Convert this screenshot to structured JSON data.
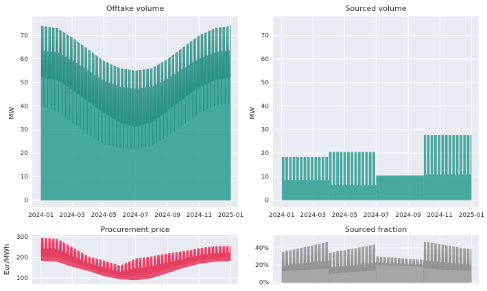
{
  "chart_data": [
    {
      "type": "area",
      "title": "Offtake volume",
      "ylabel": "MW",
      "xlabel": "",
      "color": "#2a9d8f",
      "ylim": [
        -3,
        78
      ],
      "yticks": [
        0,
        10,
        20,
        30,
        40,
        50,
        60,
        70
      ],
      "xticks": [
        "2024-01",
        "2024-03",
        "2024-05",
        "2024-07",
        "2024-09",
        "2024-11",
        "2025-01"
      ],
      "xlim": [
        "2023-12-15",
        "2025-01-15"
      ],
      "grid": true,
      "series": [
        {
          "x": [
            "2024-01-01",
            "2024-02-01",
            "2024-03-01",
            "2024-04-01",
            "2024-05-01",
            "2024-06-01",
            "2024-07-01",
            "2024-08-01",
            "2024-09-01",
            "2024-10-01",
            "2024-11-01",
            "2024-12-01",
            "2024-12-31"
          ],
          "daily_max": [
            74,
            73,
            69,
            64,
            59,
            56,
            55,
            56,
            60,
            65,
            70,
            73,
            74
          ],
          "daily_low": [
            52,
            51,
            47,
            42,
            37,
            33,
            31,
            33,
            38,
            43,
            48,
            51,
            52
          ],
          "weekend_low": [
            40,
            38,
            33,
            28,
            24,
            22,
            22,
            23,
            27,
            32,
            37,
            40,
            41
          ]
        }
      ]
    },
    {
      "type": "area",
      "title": "Sourced volume",
      "ylabel": "MW",
      "xlabel": "",
      "color": "#2a9d8f",
      "ylim": [
        -3,
        78
      ],
      "yticks": [
        0,
        10,
        20,
        30,
        40,
        50,
        60,
        70
      ],
      "xticks": [
        "2024-01",
        "2024-03",
        "2024-05",
        "2024-07",
        "2024-09",
        "2024-11",
        "2025-01"
      ],
      "xlim": [
        "2023-12-15",
        "2025-01-15"
      ],
      "grid": true,
      "series": [
        {
          "quarters": [
            {
              "start": "2024-01-01",
              "end": "2024-04-01",
              "peak": 18.3,
              "base": 8.6
            },
            {
              "start": "2024-04-01",
              "end": "2024-07-01",
              "peak": 20.5,
              "base": 6.4
            },
            {
              "start": "2024-07-01",
              "end": "2024-10-01",
              "peak": 10.5,
              "base": 10.5
            },
            {
              "start": "2024-10-01",
              "end": "2025-01-01",
              "peak": 27.6,
              "base": 10.9
            }
          ]
        }
      ]
    },
    {
      "type": "area",
      "title": "Procurement price",
      "ylabel": "Eur/MWh",
      "xlabel": "",
      "color": "#e63e62",
      "ylim": [
        70,
        310
      ],
      "yticks": [
        100,
        200,
        300
      ],
      "xlim": [
        "2023-12-15",
        "2025-01-15"
      ],
      "grid": true,
      "series": [
        {
          "x": [
            "2024-01-01",
            "2024-02-01",
            "2024-03-01",
            "2024-04-01",
            "2024-05-01",
            "2024-06-01",
            "2024-07-01",
            "2024-08-01",
            "2024-09-01",
            "2024-10-01",
            "2024-11-01",
            "2024-12-01",
            "2024-12-31"
          ],
          "low": [
            185,
            180,
            155,
            135,
            110,
            95,
            90,
            100,
            125,
            150,
            170,
            180,
            185
          ],
          "high": [
            295,
            290,
            250,
            205,
            185,
            160,
            195,
            205,
            220,
            230,
            245,
            255,
            255
          ]
        }
      ]
    },
    {
      "type": "area",
      "title": "Sourced fraction",
      "ylabel": "",
      "xlabel": "",
      "color": "#9a9a9a",
      "ylim": [
        -0.02,
        0.55
      ],
      "yticks": [
        0,
        0.2,
        0.4
      ],
      "ytick_labels": [
        "0%",
        "20%",
        "40%"
      ],
      "xlim": [
        "2023-12-15",
        "2025-01-15"
      ],
      "grid": true,
      "series": [
        {
          "quarters": [
            {
              "start": "2024-01-01",
              "end": "2024-04-01",
              "base_start": 0.13,
              "base_end": 0.16,
              "peak_start": 0.35,
              "peak_end": 0.47
            },
            {
              "start": "2024-04-01",
              "end": "2024-07-01",
              "base_start": 0.1,
              "base_end": 0.14,
              "peak_start": 0.34,
              "peak_end": 0.44
            },
            {
              "start": "2024-07-01",
              "end": "2024-10-01",
              "base_start": 0.2,
              "base_end": 0.18,
              "peak_start": 0.3,
              "peak_end": 0.26
            },
            {
              "start": "2024-10-01",
              "end": "2025-01-01",
              "base_start": 0.16,
              "base_end": 0.13,
              "peak_start": 0.47,
              "peak_end": 0.38
            }
          ]
        }
      ]
    }
  ]
}
